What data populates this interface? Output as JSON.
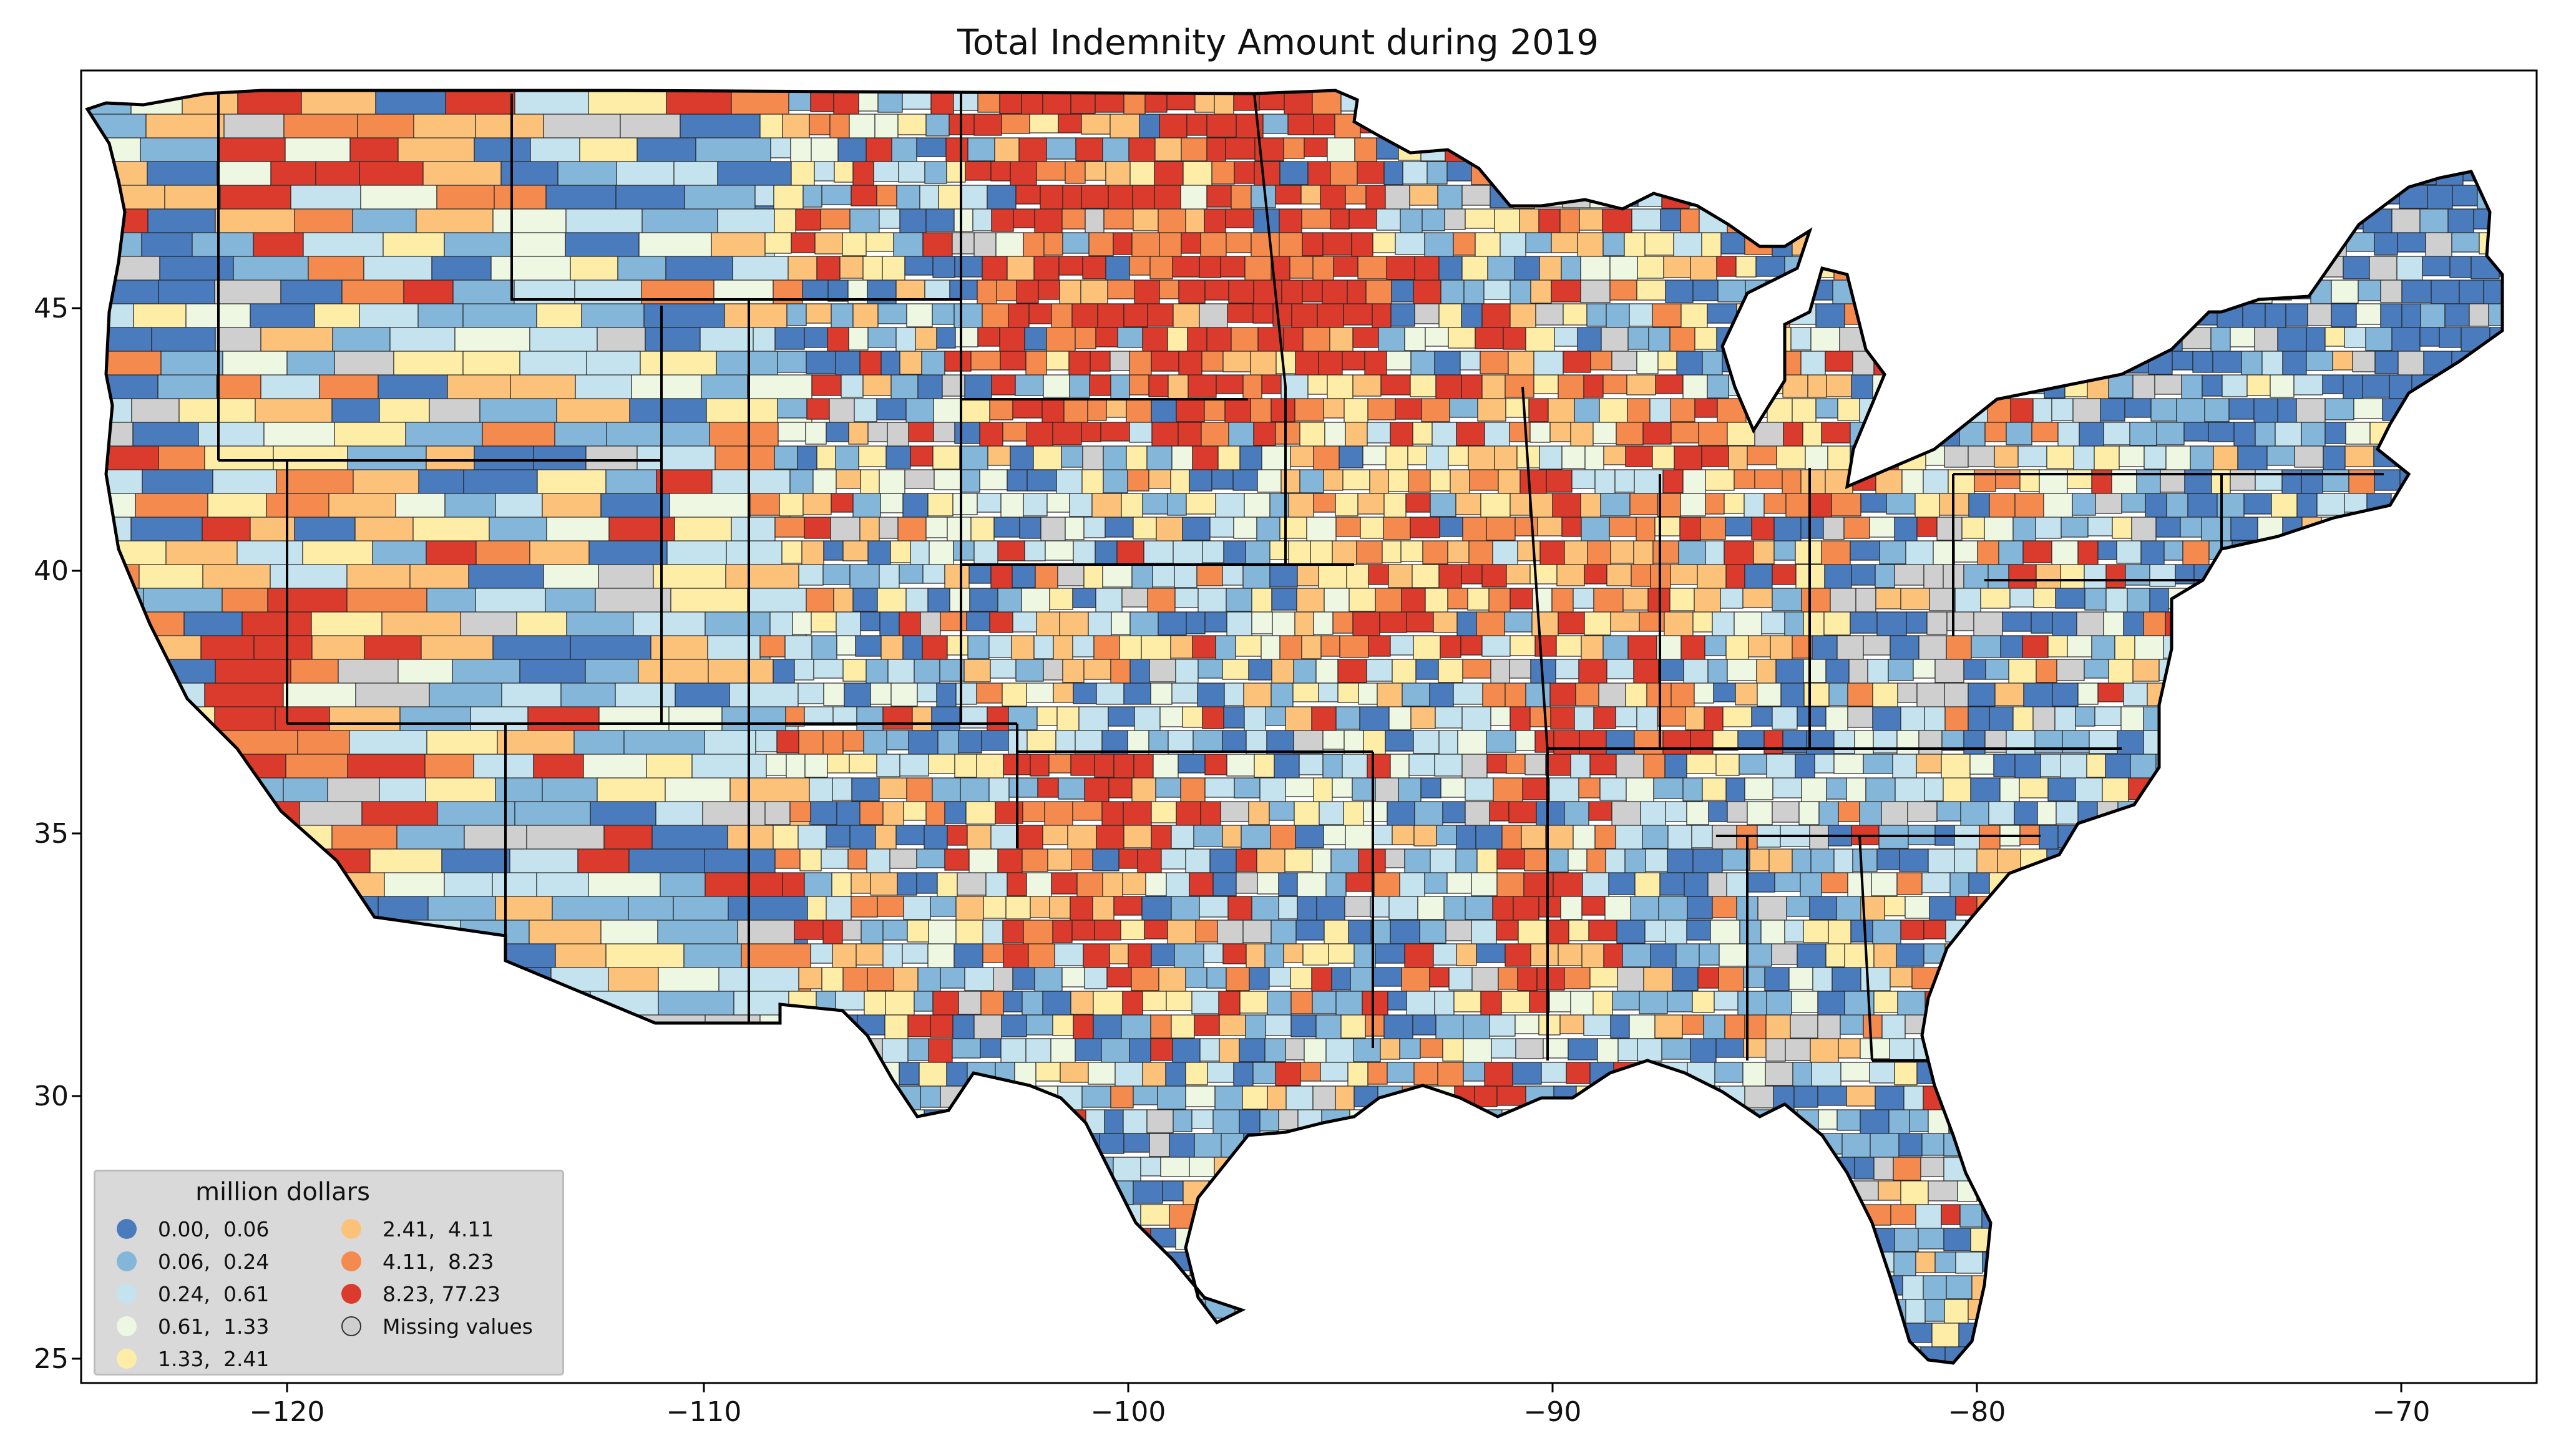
{
  "map": {
    "title": "Total Indemnity Amount during 2019",
    "x_ticks": [
      "−120",
      "−110",
      "−100",
      "−90",
      "−80",
      "−70"
    ],
    "y_ticks": [
      "25",
      "30",
      "35",
      "40",
      "45"
    ],
    "x_range": [
      -124.8,
      -66.5
    ],
    "y_range": [
      24.5,
      49.5
    ],
    "background_color": "#ffffff"
  },
  "legend": {
    "title": "million dollars",
    "classes": [
      {
        "label": "0.00,  0.06",
        "color": "#4a7bbd"
      },
      {
        "label": "0.06,  0.24",
        "color": "#84b6da"
      },
      {
        "label": "0.24,  0.61",
        "color": "#c4e3ee"
      },
      {
        "label": "0.61,  1.33",
        "color": "#eef7e2"
      },
      {
        "label": "1.33,  2.41",
        "color": "#fdeda6"
      },
      {
        "label": "2.41,  4.11",
        "color": "#fcc27a"
      },
      {
        "label": "4.11,  8.23",
        "color": "#f48a4e"
      },
      {
        "label": "8.23, 77.23",
        "color": "#da3b2c"
      },
      {
        "label": "Missing values",
        "color": "#cfcfcf"
      }
    ]
  }
}
